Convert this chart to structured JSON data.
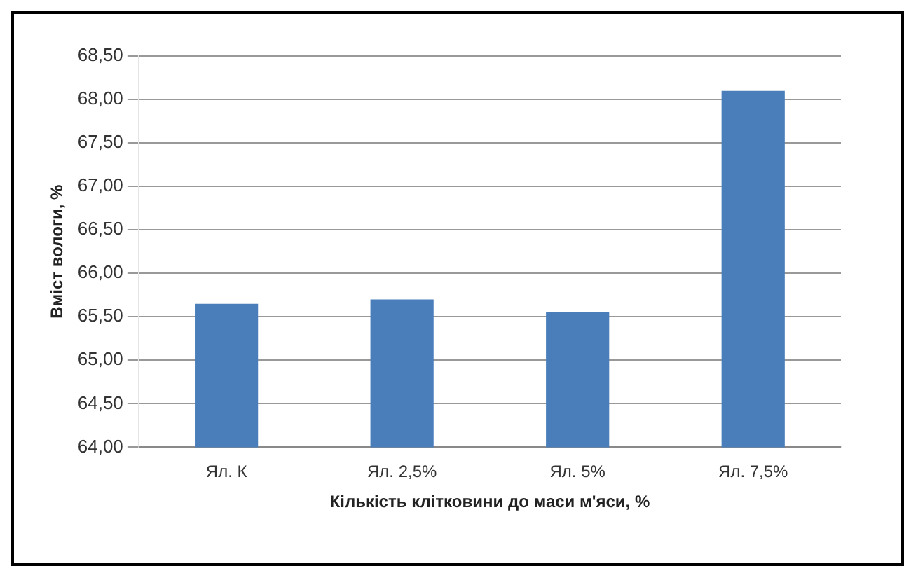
{
  "chart_data": {
    "type": "bar",
    "xlabel": "Кількість клітковини до маси м'яси, %",
    "ylabel": "Вміст вологи, %",
    "categories": [
      "Ял. К",
      "Ял. 2,5%",
      "Ял. 5%",
      "Ял. 7,5%"
    ],
    "values": [
      65.65,
      65.7,
      65.55,
      68.1
    ],
    "color": "#4a7ebb",
    "ylim": [
      64,
      68.5
    ],
    "yticks": [
      {
        "value": 64,
        "label": "64,00"
      },
      {
        "value": 64.5,
        "label": "64,50"
      },
      {
        "value": 65,
        "label": "65,00"
      },
      {
        "value": 65.5,
        "label": "65,50"
      },
      {
        "value": 66,
        "label": "66,00"
      },
      {
        "value": 66.5,
        "label": "66,50"
      },
      {
        "value": 67,
        "label": "67,00"
      },
      {
        "value": 67.5,
        "label": "67,50"
      },
      {
        "value": 68,
        "label": "68,00"
      },
      {
        "value": 68.5,
        "label": "68,50"
      }
    ],
    "grid": "y",
    "legend": false
  }
}
